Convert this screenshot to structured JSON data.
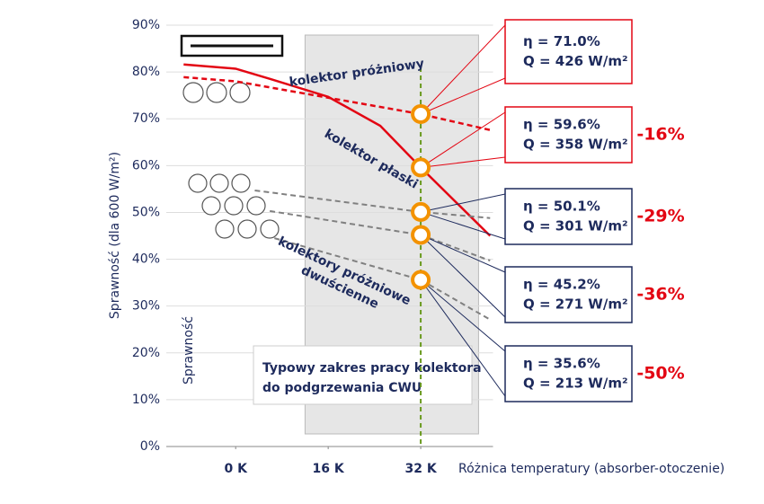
{
  "chart_data": {
    "type": "line",
    "y_label": "Sprawność (dla 600 W/m²)",
    "x_label": "Różnica temperatury (absorber-otoczenie)",
    "inner_label": "Sprawność",
    "xlim": [
      -12,
      44.5
    ],
    "xticks": [
      {
        "value": 0,
        "label": "0 K"
      },
      {
        "value": 16,
        "label": "16 K"
      },
      {
        "value": 32,
        "label": "32 K"
      }
    ],
    "ylim": [
      0,
      90
    ],
    "yticks": [
      {
        "value": 0,
        "label": "0%"
      },
      {
        "value": 10,
        "label": "10%"
      },
      {
        "value": 20,
        "label": "20%"
      },
      {
        "value": 30,
        "label": "30%"
      },
      {
        "value": 40,
        "label": "40%"
      },
      {
        "value": 50,
        "label": "50%"
      },
      {
        "value": 60,
        "label": "60%"
      },
      {
        "value": 70,
        "label": "70%"
      },
      {
        "value": 80,
        "label": "80%"
      },
      {
        "value": 90,
        "label": "90%"
      }
    ],
    "grid": true,
    "reference_x": 32,
    "band": {
      "range": [
        12,
        42
      ],
      "lines": [
        "Typowy zakres pracy kolektora",
        "do podgrzewania CWU"
      ]
    },
    "series": [
      {
        "name": "kolektor próżniowy",
        "color": "#e30613",
        "style": "dashed",
        "x": [
          -9,
          0,
          32,
          44
        ],
        "values": [
          78.9,
          78,
          71,
          67.6
        ]
      },
      {
        "name": "kolektor płaski",
        "color": "#e30613",
        "style": "solid",
        "x": [
          -9,
          0,
          6,
          16,
          25,
          32,
          44
        ],
        "values": [
          81.6,
          80.7,
          78.5,
          74.7,
          68.5,
          59.6,
          45
        ]
      },
      {
        "color": "#808080",
        "style": "dashed",
        "x": [
          3.3,
          32,
          44
        ],
        "values": [
          54.7,
          50.1,
          48.8
        ]
      },
      {
        "color": "#808080",
        "style": "dashed",
        "x": [
          5.9,
          32,
          44
        ],
        "values": [
          50.3,
          45.2,
          39.7
        ]
      },
      {
        "color": "#808080",
        "style": "dashed",
        "x": [
          6.7,
          32,
          44
        ],
        "values": [
          44.5,
          35.6,
          27.1
        ]
      }
    ],
    "group_label": [
      "kolektory próżniowe",
      "dwuścienne"
    ],
    "callouts": [
      {
        "value": 71.0,
        "label": "η = 71.0%",
        "q": "Q = 426 W/m²",
        "color": "#e30613"
      },
      {
        "value": 59.6,
        "label": "η = 59.6%",
        "q": "Q = 358 W/m²",
        "color": "#e30613",
        "change": "-16%"
      },
      {
        "value": 50.1,
        "label": "η = 50.1%",
        "q": "Q = 301 W/m²",
        "color": "#1d2a5c",
        "change": "-29%"
      },
      {
        "value": 45.2,
        "label": "η = 45.2%",
        "q": "Q = 271 W/m²",
        "color": "#1d2a5c",
        "change": "-36%"
      },
      {
        "value": 35.6,
        "label": "η = 35.6%",
        "q": "Q = 213 W/m²",
        "color": "#1d2a5c",
        "change": "-50%"
      }
    ]
  }
}
